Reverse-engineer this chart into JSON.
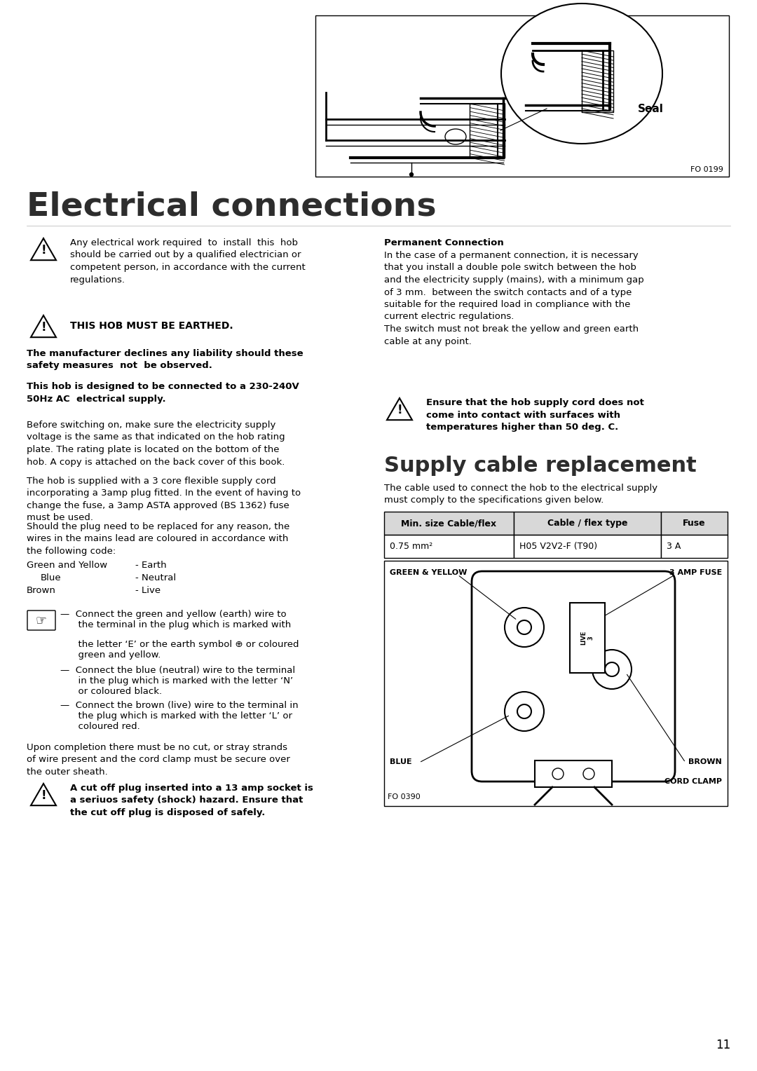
{
  "page_number": "11",
  "background_color": "#ffffff",
  "title_electrical": "Electrical connections",
  "title_supply": "Supply cable replacement",
  "warning_text_1": "Any electrical work required  to  install  this  hob\nshould be carried out by a qualified electrician or\ncompetent person, in accordance with the current\nregulations.",
  "warning_text_2": "THIS HOB MUST BE EARTHED.",
  "warning_text_3": "The manufacturer declines any liability should these\nsafety measures  not  be observed.",
  "warning_text_4": "This hob is designed to be connected to a 230-240V\n50Hz AC  electrical supply.",
  "body_text_left_1": "Before switching on, make sure the electricity supply\nvoltage is the same as that indicated on the hob rating\nplate. The rating plate is located on the bottom of the\nhob. A copy is attached on the back cover of this book.",
  "body_text_left_2a": "The hob is supplied with a 3 core flexible supply cord\nincorporating a 3amp plug fitted. In the event of having to\nchange the fuse, a 3amp ASTA approved (BS 1362) fuse\nmust be used.",
  "body_text_left_2b": "Should the plug need to be replaced for any reason, the\nwires in the mains lead are coloured in accordance with\nthe following code:",
  "color_code_1a": "Green and Yellow",
  "color_code_1b": "- Earth",
  "color_code_2a": "Blue",
  "color_code_2b": "- Neutral",
  "color_code_3a": "Brown",
  "color_code_3b": "- Live",
  "bullet_1a": "—  Connect the green and yellow (earth) wire to",
  "bullet_1b": "      the terminal in the plug which is marked with",
  "bullet_1c": "      the letter ‘E’ or the earth symbol ⊕ or coloured",
  "bullet_1d": "      green and yellow.",
  "bullet_2a": "—  Connect the blue (neutral) wire to the terminal",
  "bullet_2b": "      in the plug which is marked with the letter ‘N’",
  "bullet_2c": "      or coloured black.",
  "bullet_3a": "—  Connect the brown (live) wire to the terminal in",
  "bullet_3b": "      the plug which is marked with the letter ‘L’ or",
  "bullet_3c": "      coloured red.",
  "completion_text": "Upon completion there must be no cut, or stray strands\nof wire present and the cord clamp must be secure over\nthe outer sheath.",
  "final_warning": "A cut off plug inserted into a 13 amp socket is\na seriuos safety (shock) hazard. Ensure that\nthe cut off plug is disposed of safely.",
  "right_col_heading": "Permanent Connection",
  "right_col_body_1": "In the case of a permanent connection, it is necessary\nthat you install a double pole switch between the hob\nand the electricity supply (mains), with a minimum gap\nof 3 mm.  between the switch contacts and of a type\nsuitable for the required load in compliance with the\ncurrent electric regulations.\nThe switch must not break the yellow and green earth\ncable at any point.",
  "right_col_warning": "Ensure that the hob supply cord does not\ncome into contact with surfaces with\ntemperatures higher than 50 deg. C.",
  "right_col_supply_body": "The cable used to connect the hob to the electrical supply\nmust comply to the specifications given below.",
  "table_headers": [
    "Min. size Cable/flex",
    "Cable / flex type",
    "Fuse"
  ],
  "table_row": [
    "0.75 mm²",
    "H05 V2V2-F (T90)",
    "3 A"
  ],
  "fo_0199": "FO 0199",
  "fo_0390": "FO 0390",
  "seal_label": "Seal",
  "plug_labels_green": "GREEN & YELLOW",
  "plug_labels_fuse": "3 AMP FUSE",
  "plug_labels_blue": "BLUE",
  "plug_labels_brown": "BROWN",
  "plug_labels_clamp": "CORD CLAMP"
}
